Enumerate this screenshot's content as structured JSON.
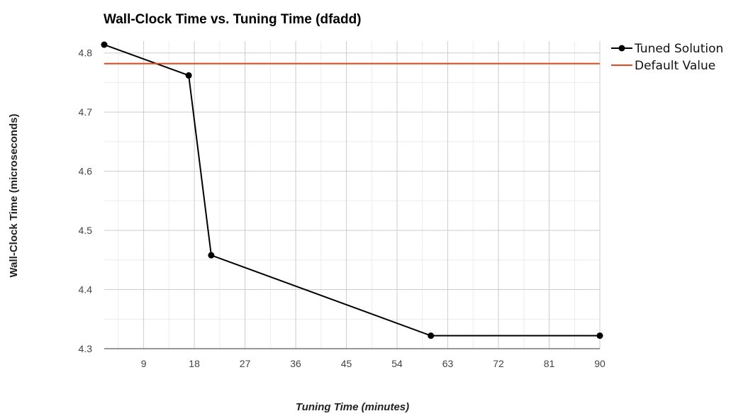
{
  "chart_data": {
    "type": "line",
    "title": "Wall-Clock Time vs. Tuning Time (dfadd)",
    "xlabel": "Tuning Time (minutes)",
    "ylabel": "Wall-Clock Time (microseconds)",
    "xlim": [
      2,
      90
    ],
    "ylim": [
      4.3,
      4.82
    ],
    "xticks": [
      9,
      18,
      27,
      36,
      45,
      54,
      63,
      72,
      81,
      90
    ],
    "yticks": [
      4.3,
      4.4,
      4.5,
      4.6,
      4.7,
      4.8
    ],
    "xtick_labels": [
      "9",
      "18",
      "27",
      "36",
      "45",
      "54",
      "63",
      "72",
      "81",
      "90"
    ],
    "ytick_labels": [
      "4.3",
      "4.4",
      "4.5",
      "4.6",
      "4.7",
      "4.8"
    ],
    "grid": true,
    "legend_position": "top-right",
    "series": [
      {
        "name": "Tuned Solution",
        "color": "#000000",
        "markers": true,
        "x": [
          2,
          17,
          21,
          60,
          90
        ],
        "y": [
          4.814,
          4.762,
          4.458,
          4.322,
          4.322
        ]
      },
      {
        "name": "Default Value",
        "color": "#e8471c",
        "markers": false,
        "x": [
          2,
          90
        ],
        "y": [
          4.782,
          4.782
        ]
      }
    ]
  }
}
